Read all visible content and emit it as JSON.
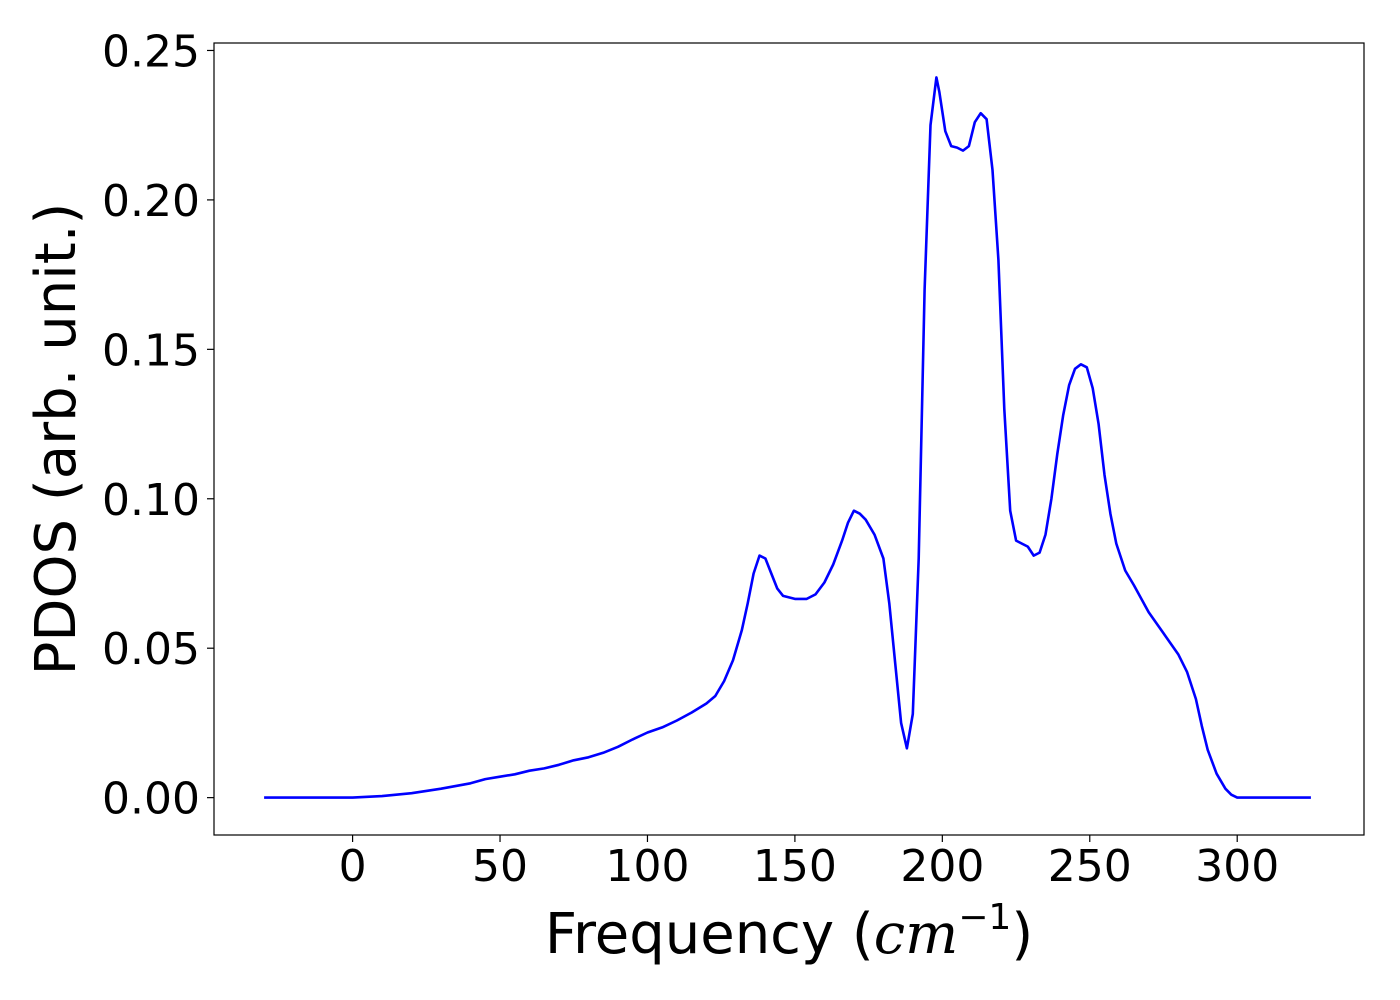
{
  "chart_data": {
    "type": "line",
    "title": "",
    "xlabel": "Frequency (cm⁻¹)",
    "xlabel_parts": {
      "prefix": "Frequency (",
      "var": "cm",
      "sup": "−1",
      "suffix": ")"
    },
    "ylabel": "PDOS (arb. unit.)",
    "xlim": [
      -47,
      343
    ],
    "ylim": [
      -0.0125,
      0.2525
    ],
    "xticks": [
      0,
      50,
      100,
      150,
      200,
      250,
      300
    ],
    "xtick_labels": [
      "0",
      "50",
      "100",
      "150",
      "200",
      "250",
      "300"
    ],
    "yticks": [
      0.0,
      0.05,
      0.1,
      0.15,
      0.2,
      0.25
    ],
    "ytick_labels": [
      "0.00",
      "0.05",
      "0.10",
      "0.15",
      "0.20",
      "0.25"
    ],
    "grid": false,
    "legend": "none",
    "series": [
      {
        "color": "#0000ff",
        "x": [
          -30,
          -10,
          0,
          10,
          20,
          30,
          40,
          45,
          50,
          55,
          60,
          65,
          70,
          75,
          80,
          85,
          90,
          95,
          100,
          105,
          110,
          115,
          120,
          123,
          126,
          129,
          132,
          134,
          136,
          138,
          140,
          142,
          144,
          146,
          150,
          154,
          157,
          160,
          163,
          166,
          168,
          170,
          172,
          174,
          177,
          180,
          182,
          184,
          186,
          188,
          190,
          192,
          194,
          196,
          198,
          199,
          201,
          203,
          205,
          207,
          209,
          211,
          213,
          215,
          217,
          219,
          221,
          223,
          225,
          227,
          229,
          231,
          233,
          235,
          237,
          239,
          241,
          243,
          245,
          247,
          249,
          251,
          253,
          255,
          257,
          259,
          262,
          265,
          270,
          275,
          280,
          283,
          286,
          288,
          290,
          293,
          296,
          298,
          300,
          305,
          325
        ],
        "y": [
          0.0,
          0.0,
          0.0,
          0.0005,
          0.0015,
          0.003,
          0.0048,
          0.0062,
          0.007,
          0.0078,
          0.009,
          0.0098,
          0.011,
          0.0125,
          0.0135,
          0.015,
          0.017,
          0.0195,
          0.0218,
          0.0235,
          0.0258,
          0.0285,
          0.0315,
          0.034,
          0.039,
          0.046,
          0.056,
          0.065,
          0.075,
          0.081,
          0.08,
          0.075,
          0.07,
          0.0675,
          0.0665,
          0.0665,
          0.068,
          0.072,
          0.078,
          0.086,
          0.092,
          0.096,
          0.095,
          0.093,
          0.088,
          0.08,
          0.065,
          0.045,
          0.025,
          0.0165,
          0.028,
          0.08,
          0.17,
          0.225,
          0.241,
          0.236,
          0.223,
          0.218,
          0.2175,
          0.2165,
          0.218,
          0.226,
          0.229,
          0.227,
          0.21,
          0.18,
          0.13,
          0.096,
          0.086,
          0.085,
          0.084,
          0.081,
          0.082,
          0.088,
          0.1,
          0.115,
          0.128,
          0.138,
          0.1435,
          0.145,
          0.144,
          0.137,
          0.125,
          0.108,
          0.095,
          0.085,
          0.076,
          0.071,
          0.062,
          0.055,
          0.048,
          0.042,
          0.033,
          0.024,
          0.016,
          0.008,
          0.003,
          0.001,
          0.0,
          0.0,
          0.0
        ]
      }
    ]
  }
}
